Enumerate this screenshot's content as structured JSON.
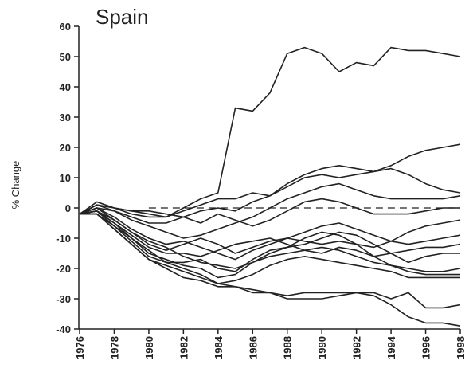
{
  "chart_data": {
    "type": "line",
    "title": "Spain",
    "y_label": "% Change",
    "x": [
      1976,
      1977,
      1978,
      1979,
      1980,
      1981,
      1982,
      1983,
      1984,
      1985,
      1986,
      1987,
      1988,
      1989,
      1990,
      1991,
      1992,
      1993,
      1994,
      1995,
      1996,
      1997,
      1998
    ],
    "xlim": [
      1976,
      1998
    ],
    "xticks": [
      1976,
      1978,
      1980,
      1982,
      1984,
      1986,
      1988,
      1990,
      1992,
      1994,
      1996,
      1998
    ],
    "ylim": [
      -40,
      60
    ],
    "yticks": [
      -40,
      -30,
      -20,
      -10,
      0,
      10,
      20,
      30,
      40,
      50,
      60
    ],
    "zero_line": "dashed",
    "series": [
      {
        "color": "#222",
        "values": [
          -2,
          2,
          0,
          -1,
          -2,
          -3,
          0,
          3,
          5,
          33,
          32,
          38,
          51,
          53,
          51,
          45,
          48,
          47,
          53,
          52,
          52,
          51,
          50
        ]
      },
      {
        "color": "#222",
        "values": [
          -2,
          1,
          0,
          -2,
          -3,
          -3,
          -1,
          1,
          3,
          3,
          5,
          4,
          8,
          11,
          13,
          14,
          13,
          12,
          14,
          17,
          19,
          20,
          21
        ]
      },
      {
        "color": "#222",
        "values": [
          -2,
          0,
          -1,
          -3,
          -5,
          -5,
          -3,
          -1,
          0,
          -1,
          2,
          4,
          7,
          10,
          11,
          10,
          11,
          12,
          13,
          11,
          8,
          6,
          5
        ]
      },
      {
        "color": "#222",
        "values": [
          -2,
          1,
          -1,
          -4,
          -6,
          -8,
          -10,
          -9,
          -7,
          -5,
          -3,
          0,
          3,
          5,
          7,
          8,
          6,
          4,
          3,
          3,
          3,
          3,
          4
        ]
      },
      {
        "color": "#222",
        "values": [
          -2,
          1,
          0,
          -1,
          -1,
          -2,
          -3,
          -5,
          -2,
          -4,
          -6,
          -4,
          -1,
          2,
          3,
          2,
          0,
          -2,
          -2,
          -2,
          -1,
          0,
          0
        ]
      },
      {
        "color": "#222",
        "values": [
          -2,
          0,
          -3,
          -7,
          -10,
          -12,
          -11,
          -13,
          -15,
          -17,
          -14,
          -12,
          -10,
          -8,
          -6,
          -5,
          -7,
          -9,
          -11,
          -8,
          -6,
          -5,
          -4
        ]
      },
      {
        "color": "#222",
        "values": [
          -2,
          -1,
          -4,
          -8,
          -12,
          -14,
          -12,
          -10,
          -12,
          -15,
          -13,
          -11,
          -10,
          -11,
          -12,
          -11,
          -12,
          -13,
          -11,
          -12,
          -11,
          -10,
          -9
        ]
      },
      {
        "color": "#222",
        "values": [
          -2,
          -1,
          -5,
          -9,
          -13,
          -15,
          -15,
          -16,
          -14,
          -12,
          -11,
          -10,
          -12,
          -14,
          -15,
          -13,
          -14,
          -16,
          -15,
          -14,
          -13,
          -13,
          -12
        ]
      },
      {
        "color": "#222",
        "values": [
          -2,
          -2,
          -6,
          -10,
          -14,
          -18,
          -18,
          -17,
          -20,
          -21,
          -17,
          -14,
          -13,
          -12,
          -10,
          -8,
          -9,
          -12,
          -15,
          -18,
          -16,
          -15,
          -15
        ]
      },
      {
        "color": "#222",
        "values": [
          -2,
          0,
          -4,
          -8,
          -11,
          -13,
          -16,
          -18,
          -19,
          -20,
          -18,
          -16,
          -15,
          -14,
          -13,
          -14,
          -16,
          -18,
          -19,
          -20,
          -21,
          -21,
          -20
        ]
      },
      {
        "color": "#222",
        "values": [
          -2,
          -1,
          -5,
          -10,
          -15,
          -17,
          -19,
          -20,
          -23,
          -22,
          -18,
          -15,
          -13,
          -10,
          -8,
          -9,
          -12,
          -16,
          -19,
          -21,
          -22,
          -22,
          -22
        ]
      },
      {
        "color": "#222",
        "values": [
          -2,
          -1,
          -6,
          -11,
          -16,
          -18,
          -20,
          -22,
          -25,
          -24,
          -22,
          -19,
          -17,
          -16,
          -17,
          -18,
          -19,
          -20,
          -21,
          -23,
          -23,
          -23,
          -23
        ]
      },
      {
        "color": "#222",
        "values": [
          -2,
          -2,
          -7,
          -12,
          -17,
          -20,
          -23,
          -24,
          -26,
          -26,
          -28,
          -28,
          -29,
          -28,
          -28,
          -28,
          -28,
          -28,
          -30,
          -28,
          -33,
          -33,
          -32
        ]
      },
      {
        "color": "#222",
        "values": [
          -2,
          -2,
          -7,
          -12,
          -17,
          -19,
          -21,
          -23,
          -25,
          -26,
          -27,
          -28,
          -30,
          -30,
          -30,
          -29,
          -28,
          -29,
          -32,
          -36,
          -38,
          -38,
          -39
        ]
      }
    ]
  }
}
